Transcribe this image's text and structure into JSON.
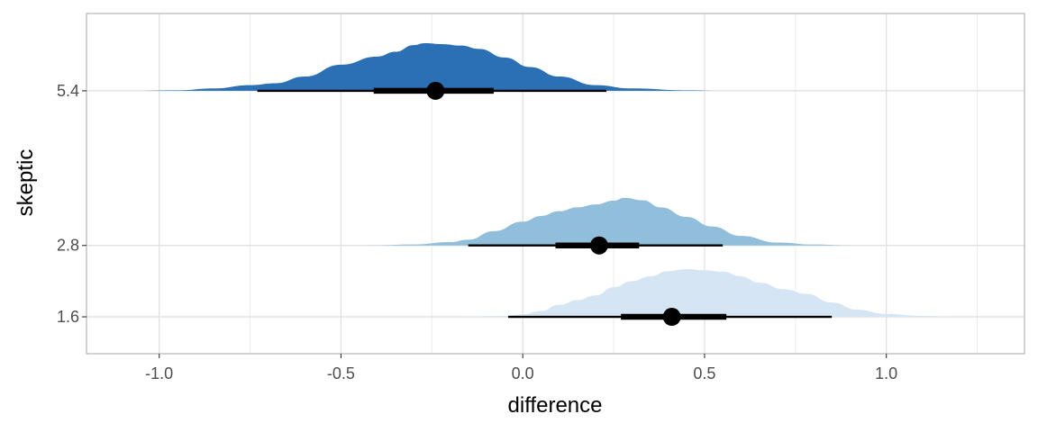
{
  "chart_data": {
    "type": "halfeye",
    "title": "",
    "xlabel": "difference",
    "ylabel": "skeptic",
    "xlim": [
      -1.2,
      1.38
    ],
    "x_ticks": [
      {
        "value": -1.0,
        "label": "-1.0"
      },
      {
        "value": -0.5,
        "label": "-0.5"
      },
      {
        "value": 0.0,
        "label": "0.0"
      },
      {
        "value": 0.5,
        "label": "0.5"
      },
      {
        "value": 1.0,
        "label": "1.0"
      }
    ],
    "x_minor_ticks": [
      -0.75,
      -0.25,
      0.25,
      0.75,
      1.25
    ],
    "y_ticks": [
      {
        "value": 5.4,
        "label": "5.4"
      },
      {
        "value": 2.8,
        "label": "2.8"
      },
      {
        "value": 1.6,
        "label": "1.6"
      }
    ],
    "ylim": [
      0.98,
      6.7
    ],
    "density_height": 0.8,
    "grid": true,
    "series": [
      {
        "name": "5.4",
        "y": 5.4,
        "color": "#2b70b4",
        "median": -0.24,
        "interval_66": [
          -0.41,
          -0.08
        ],
        "interval_95": [
          -0.73,
          0.23
        ],
        "density": [
          [
            -1.08,
            0.0
          ],
          [
            -0.95,
            0.01
          ],
          [
            -0.85,
            0.05
          ],
          [
            -0.75,
            0.12
          ],
          [
            -0.68,
            0.16
          ],
          [
            -0.6,
            0.3
          ],
          [
            -0.5,
            0.55
          ],
          [
            -0.4,
            0.72
          ],
          [
            -0.35,
            0.82
          ],
          [
            -0.3,
            0.96
          ],
          [
            -0.27,
            1.0
          ],
          [
            -0.22,
            0.98
          ],
          [
            -0.17,
            0.95
          ],
          [
            -0.12,
            0.88
          ],
          [
            -0.05,
            0.7
          ],
          [
            0.02,
            0.5
          ],
          [
            0.1,
            0.3
          ],
          [
            0.2,
            0.12
          ],
          [
            0.3,
            0.05
          ],
          [
            0.45,
            0.01
          ],
          [
            0.55,
            0.0
          ]
        ]
      },
      {
        "name": "2.8",
        "y": 2.8,
        "color": "#91bedb",
        "median": 0.21,
        "interval_66": [
          0.09,
          0.32
        ],
        "interval_95": [
          -0.15,
          0.55
        ],
        "density": [
          [
            -0.42,
            0.0
          ],
          [
            -0.3,
            0.02
          ],
          [
            -0.2,
            0.07
          ],
          [
            -0.15,
            0.12
          ],
          [
            -0.08,
            0.3
          ],
          [
            0.0,
            0.5
          ],
          [
            0.05,
            0.62
          ],
          [
            0.1,
            0.72
          ],
          [
            0.15,
            0.8
          ],
          [
            0.2,
            0.86
          ],
          [
            0.25,
            0.94
          ],
          [
            0.28,
            1.0
          ],
          [
            0.33,
            0.95
          ],
          [
            0.38,
            0.8
          ],
          [
            0.45,
            0.6
          ],
          [
            0.52,
            0.4
          ],
          [
            0.6,
            0.2
          ],
          [
            0.7,
            0.06
          ],
          [
            0.8,
            0.02
          ],
          [
            0.9,
            0.0
          ]
        ]
      },
      {
        "name": "1.6",
        "y": 1.6,
        "color": "#d6e5f4",
        "median": 0.41,
        "interval_66": [
          0.27,
          0.56
        ],
        "interval_95": [
          -0.04,
          0.85
        ],
        "density": [
          [
            -0.2,
            0.0
          ],
          [
            -0.05,
            0.02
          ],
          [
            0.0,
            0.05
          ],
          [
            0.05,
            0.12
          ],
          [
            0.1,
            0.25
          ],
          [
            0.15,
            0.35
          ],
          [
            0.2,
            0.45
          ],
          [
            0.25,
            0.62
          ],
          [
            0.3,
            0.75
          ],
          [
            0.35,
            0.85
          ],
          [
            0.4,
            0.96
          ],
          [
            0.45,
            1.0
          ],
          [
            0.5,
            0.98
          ],
          [
            0.55,
            0.95
          ],
          [
            0.6,
            0.85
          ],
          [
            0.65,
            0.72
          ],
          [
            0.72,
            0.58
          ],
          [
            0.78,
            0.48
          ],
          [
            0.85,
            0.3
          ],
          [
            0.92,
            0.15
          ],
          [
            1.0,
            0.06
          ],
          [
            1.1,
            0.02
          ],
          [
            1.2,
            0.0
          ]
        ]
      }
    ]
  }
}
